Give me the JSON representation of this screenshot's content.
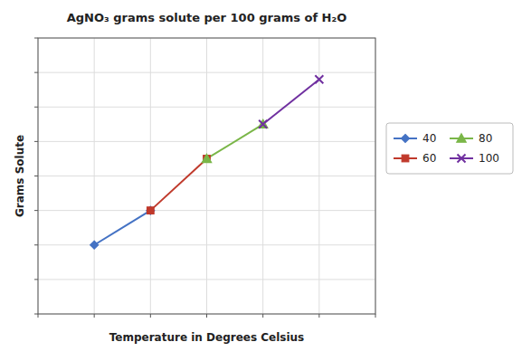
{
  "chart_data": {
    "type": "line",
    "title": "AgNO₃ grams solute per 100 grams of H₂O",
    "xlabel": "Temperature in Degrees Celsius",
    "ylabel": "Grams Solute",
    "series": [
      {
        "name": "40",
        "color": "#4472c4",
        "marker": "diamond",
        "x": [
          1,
          2
        ],
        "values": [
          2,
          3
        ]
      },
      {
        "name": "60",
        "color": "#c0392b",
        "marker": "square",
        "x": [
          2,
          3
        ],
        "values": [
          3,
          4.5
        ]
      },
      {
        "name": "80",
        "color": "#7ab648",
        "marker": "triangle",
        "x": [
          3,
          4
        ],
        "values": [
          4.5,
          5.5
        ]
      },
      {
        "name": "100",
        "color": "#7030a0",
        "marker": "x",
        "x": [
          4,
          5
        ],
        "values": [
          5.5,
          6.8
        ]
      }
    ],
    "xlim": [
      0,
      6
    ],
    "ylim": [
      0,
      8
    ],
    "xticks": [
      0,
      1,
      2,
      3,
      4,
      5,
      6
    ],
    "yticks": [
      0,
      1,
      2,
      3,
      4,
      5,
      6,
      7,
      8
    ],
    "grid": true,
    "tick_labels": false,
    "legend": "right"
  }
}
